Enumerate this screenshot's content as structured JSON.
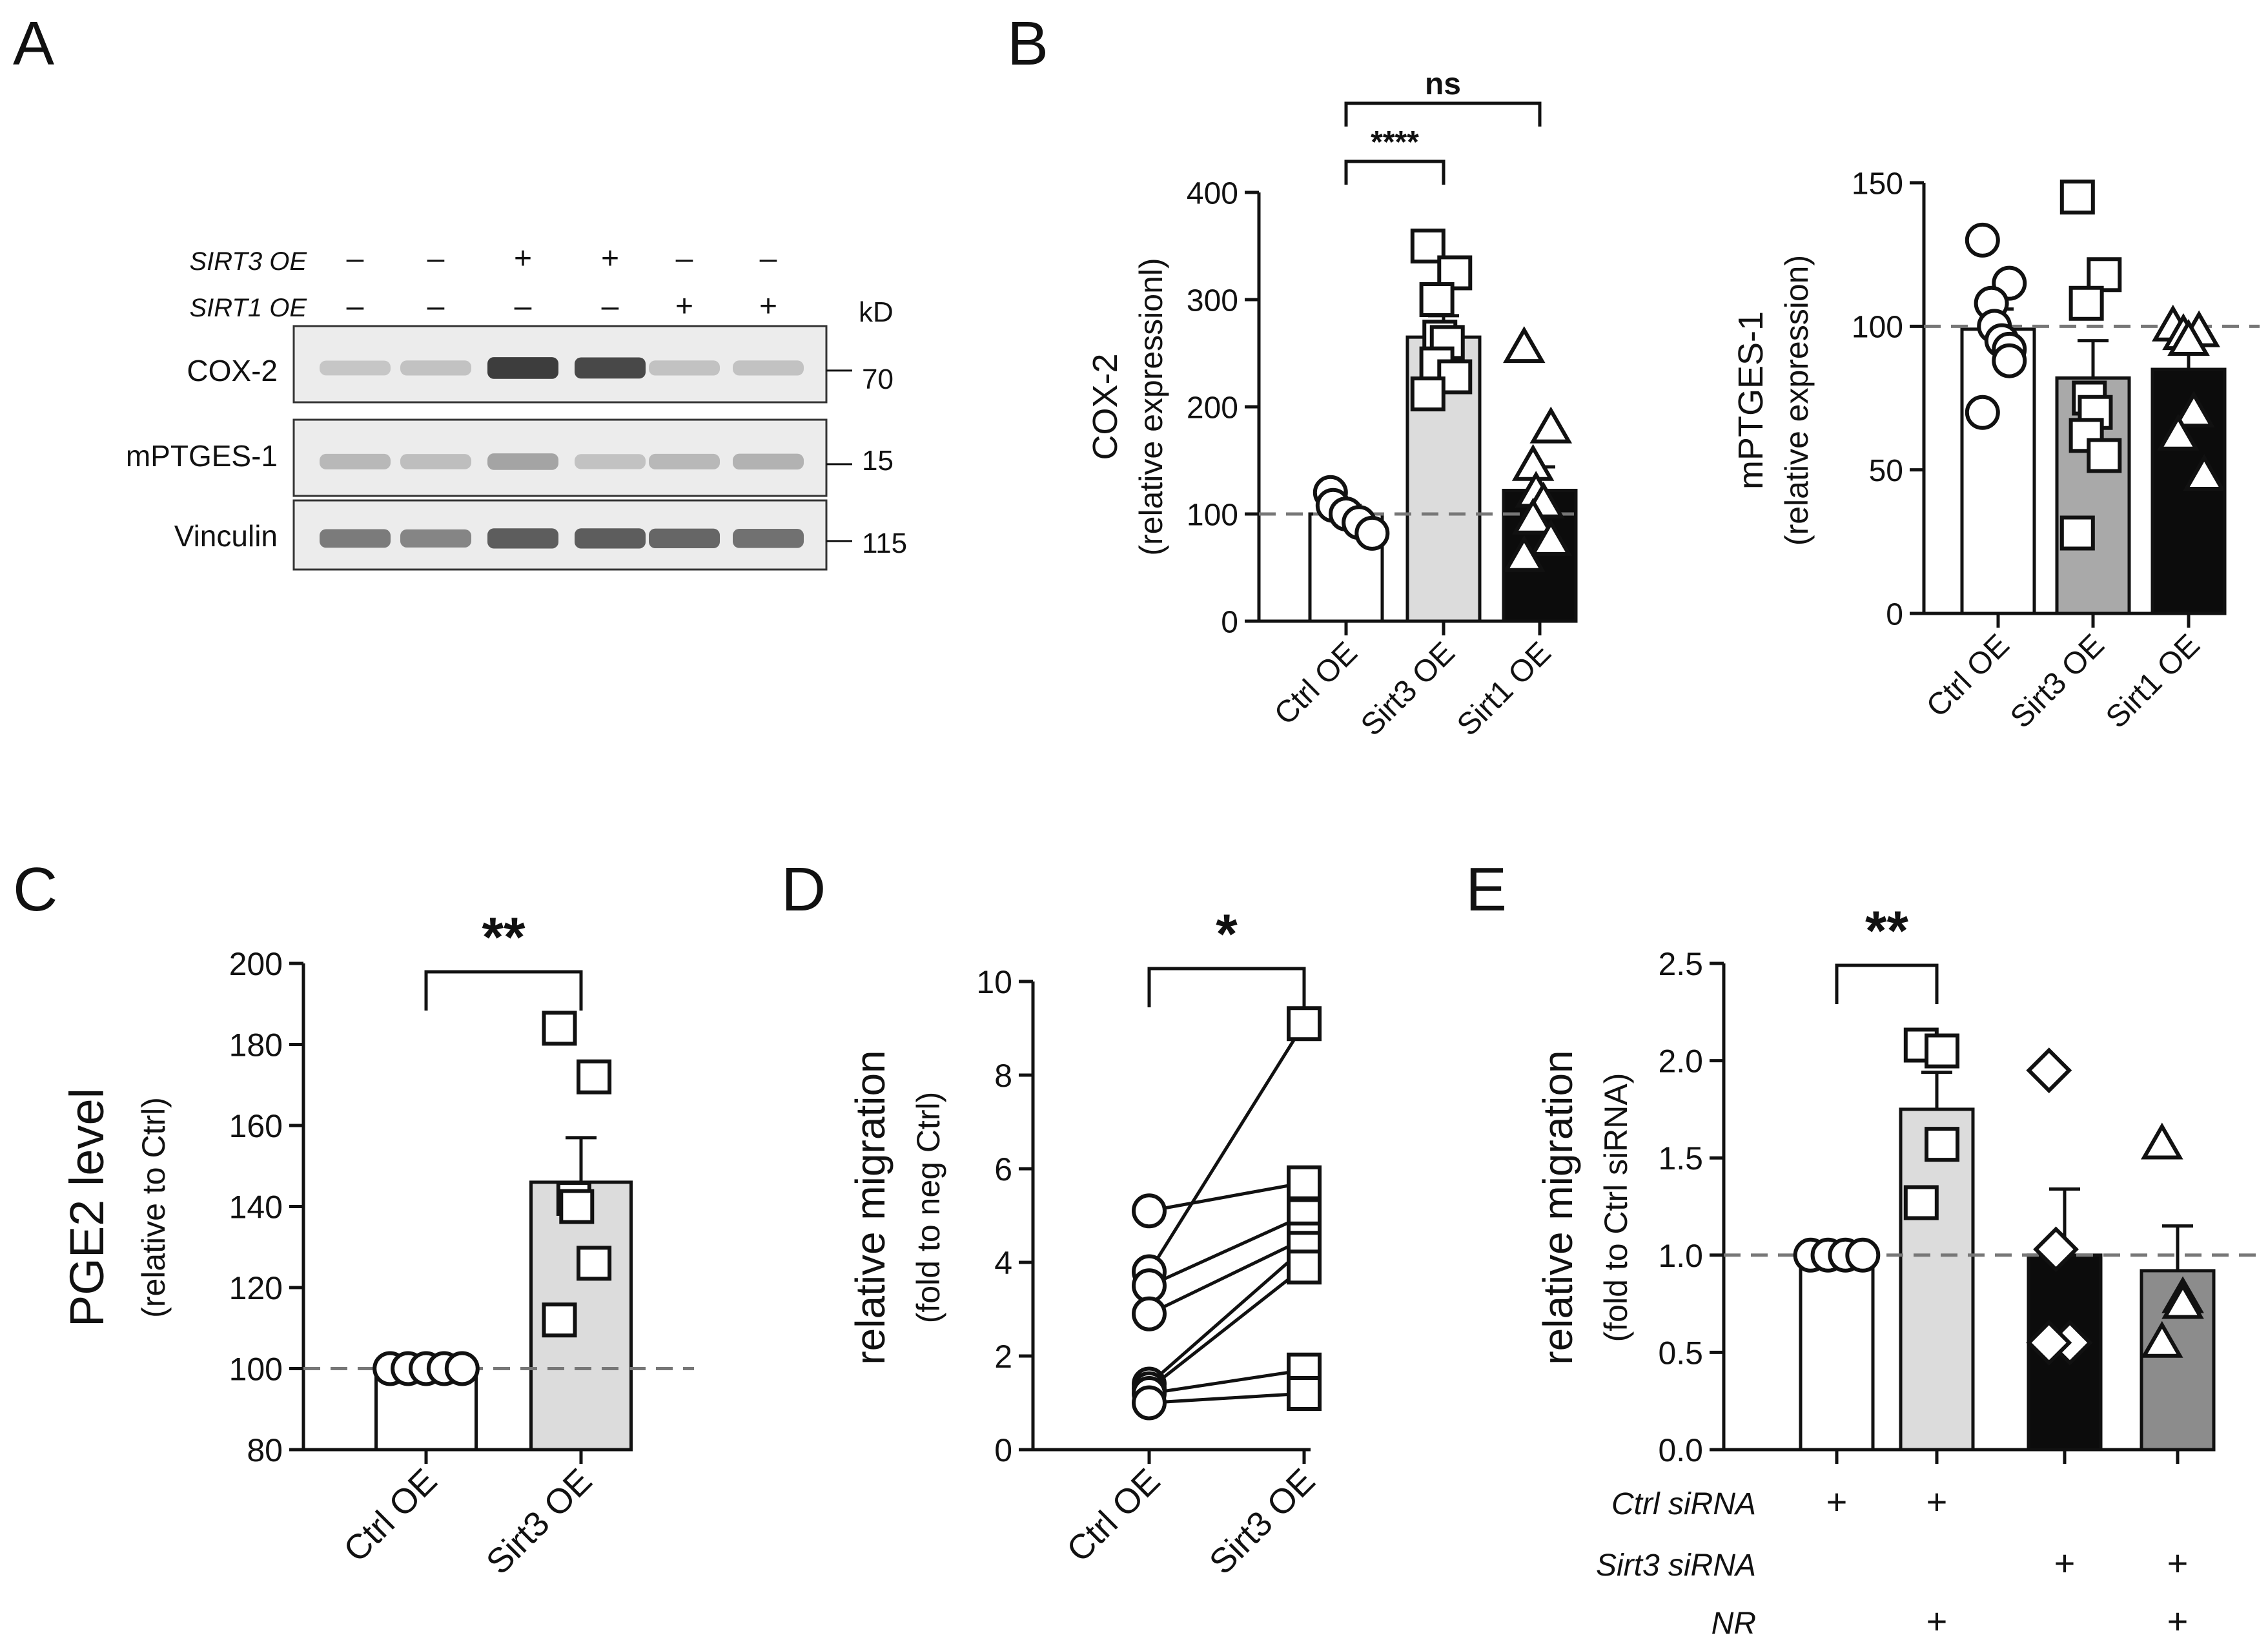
{
  "panel_letters": [
    "A",
    "B",
    "C",
    "D",
    "E"
  ],
  "blot": {
    "rows": [
      {
        "label": "SIRT3 OE",
        "signs": [
          "–",
          "–",
          "+",
          "+",
          "–",
          "–"
        ]
      },
      {
        "label": "SIRT1 OE",
        "signs": [
          "–",
          "–",
          "–",
          "–",
          "+",
          "+"
        ]
      }
    ],
    "kd_label": "kD",
    "bands": [
      {
        "name": "COX-2",
        "kd": "70",
        "intensity": [
          0.18,
          0.2,
          0.85,
          0.8,
          0.2,
          0.2
        ]
      },
      {
        "name": "mPTGES-1",
        "kd": "15",
        "intensity": [
          0.25,
          0.22,
          0.35,
          0.2,
          0.25,
          0.28
        ]
      },
      {
        "name": "Vinculin",
        "kd": "115",
        "intensity": [
          0.55,
          0.5,
          0.7,
          0.7,
          0.65,
          0.6
        ]
      }
    ]
  },
  "chart_data": [
    {
      "id": "B1",
      "type": "bar",
      "ylabel": "COX-2",
      "ylabel2": "(relative expressionl)",
      "ylim": [
        0,
        400
      ],
      "yticks": [
        0,
        100,
        200,
        300,
        400
      ],
      "ytick_labels": [
        "0",
        "100",
        "200",
        "300",
        "400"
      ],
      "reference_line": 100,
      "categories": [
        "Ctrl OE",
        "Sirt3 OE",
        "Sirt1 OE"
      ],
      "colors": [
        "#ffffff",
        "#dcdcdc",
        "#0c0c0c"
      ],
      "markers": [
        "circle",
        "square",
        "triangle"
      ],
      "means": [
        100,
        265,
        122
      ],
      "sem": [
        8,
        20,
        22
      ],
      "points": [
        [
          120,
          108,
          100,
          92,
          82
        ],
        [
          350,
          325,
          300,
          265,
          260,
          240,
          228,
          212
        ],
        [
          255,
          180,
          145,
          120,
          110,
          95,
          75,
          60
        ]
      ],
      "brackets": [
        {
          "from": 0,
          "to": 1,
          "label": "****",
          "level": 1
        },
        {
          "from": 0,
          "to": 2,
          "label": "ns",
          "level": 2
        }
      ]
    },
    {
      "id": "B2",
      "type": "bar",
      "ylabel": "mPTGES-1",
      "ylabel2": "(relative expression)",
      "ylim": [
        0,
        150
      ],
      "yticks": [
        0,
        50,
        100,
        150
      ],
      "ytick_labels": [
        "0",
        "50",
        "100",
        "150"
      ],
      "reference_line": 100,
      "categories": [
        "Ctrl OE",
        "Sirt3 OE",
        "Sirt1 OE"
      ],
      "colors": [
        "#ffffff",
        "#a9a9a9",
        "#0c0c0c"
      ],
      "markers": [
        "circle",
        "square",
        "triangle"
      ],
      "means": [
        99,
        82,
        85
      ],
      "sem": [
        7,
        13,
        8
      ],
      "points": [
        [
          130,
          115,
          108,
          100,
          95,
          92,
          88,
          70
        ],
        [
          145,
          118,
          108,
          75,
          70,
          62,
          55,
          28
        ],
        [
          100,
          98,
          97,
          95,
          70,
          62,
          48
        ]
      ],
      "brackets": []
    },
    {
      "id": "C",
      "type": "bar",
      "ylabel": "PGE2 level",
      "ylabel2": "(relative to Ctrl)",
      "ylim": [
        80,
        200
      ],
      "yticks": [
        80,
        100,
        120,
        140,
        160,
        180,
        200
      ],
      "ytick_labels": [
        "80",
        "100",
        "120",
        "140",
        "160",
        "180",
        "200"
      ],
      "reference_line": 100,
      "categories": [
        "Ctrl OE",
        "Sirt3 OE"
      ],
      "colors": [
        "#ffffff",
        "#dcdcdc"
      ],
      "markers": [
        "circle",
        "square"
      ],
      "means": [
        100,
        146
      ],
      "sem": [
        0,
        11
      ],
      "points": [
        [
          100,
          100,
          100,
          100,
          100
        ],
        [
          184,
          172,
          142,
          140,
          126,
          112
        ]
      ],
      "brackets": [
        {
          "from": 0,
          "to": 1,
          "label": "**",
          "level": 1
        }
      ]
    },
    {
      "id": "D",
      "type": "paired",
      "ylabel": "relative migration",
      "ylabel2": "(fold to neg Ctrl)",
      "ylim": [
        0,
        10
      ],
      "yticks": [
        0,
        2,
        4,
        6,
        8,
        10
      ],
      "ytick_labels": [
        "0",
        "2",
        "4",
        "6",
        "8",
        "10"
      ],
      "categories": [
        "Ctrl OE",
        "Sirt3 OE"
      ],
      "markers": [
        "circle",
        "square"
      ],
      "pairs": [
        [
          3.8,
          9.1
        ],
        [
          5.1,
          5.7
        ],
        [
          3.5,
          5.0
        ],
        [
          2.9,
          4.5
        ],
        [
          1.4,
          4.3
        ],
        [
          1.3,
          3.9
        ],
        [
          1.2,
          1.7
        ],
        [
          1.0,
          1.2
        ]
      ],
      "brackets": [
        {
          "from": 0,
          "to": 1,
          "label": "*",
          "level": 1
        }
      ]
    },
    {
      "id": "E",
      "type": "bar",
      "ylabel": "relative migration",
      "ylabel2": "(fold to Ctrl siRNA)",
      "ylim": [
        0,
        2.5
      ],
      "yticks": [
        0,
        0.5,
        1.0,
        1.5,
        2.0,
        2.5
      ],
      "ytick_labels": [
        "0.0",
        "0.5",
        "1.0",
        "1.5",
        "2.0",
        "2.5"
      ],
      "reference_line": 1.0,
      "categories": [
        "",
        "",
        "",
        ""
      ],
      "colors": [
        "#ffffff",
        "#dcdcdc",
        "#0c0c0c",
        "#8c8c8c"
      ],
      "markers": [
        "circle",
        "square",
        "diamond",
        "triangle"
      ],
      "means": [
        1.0,
        1.75,
        1.0,
        0.92
      ],
      "sem": [
        0,
        0.19,
        0.34,
        0.23
      ],
      "points": [
        [
          1.0,
          1.0,
          1.0,
          1.0
        ],
        [
          2.08,
          2.05,
          1.57,
          1.27
        ],
        [
          1.95,
          1.03,
          0.55,
          0.55
        ],
        [
          1.57,
          0.78,
          0.75,
          0.55
        ]
      ],
      "brackets": [
        {
          "from": 0,
          "to": 1,
          "label": "**",
          "level": 1
        }
      ],
      "conditions": [
        {
          "label": "Ctrl siRNA",
          "signs": [
            "+",
            "+",
            "",
            ""
          ]
        },
        {
          "label": "Sirt3 siRNA",
          "signs": [
            "",
            "",
            "+",
            "+"
          ]
        },
        {
          "label": "NR",
          "signs": [
            "",
            "+",
            "",
            "+"
          ]
        }
      ]
    }
  ]
}
